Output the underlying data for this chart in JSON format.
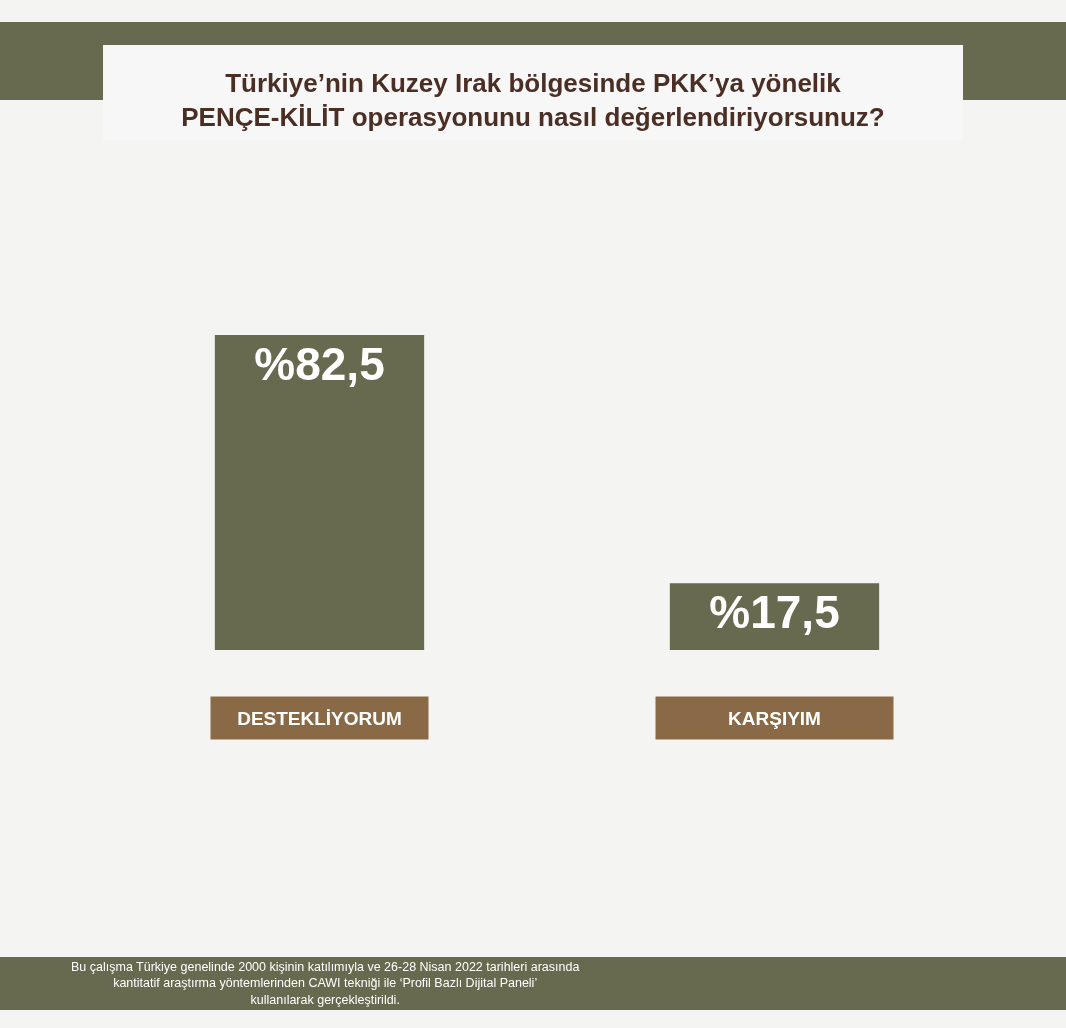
{
  "chart_data": {
    "type": "bar",
    "title": "Türkiye’nin Kuzey Irak bölgesinde PKK’ya yönelik\nPENÇE-KİLİT operasyonunu nasıl değerlendiriyorsunuz?",
    "categories": [
      "DESTEKLİYORUM",
      "KARŞIYIM"
    ],
    "values": [
      82.5,
      17.5
    ],
    "value_labels": [
      "%82,5",
      "%17,5"
    ],
    "color": "#676a4e",
    "annotations": [
      "Bu çalışma Türkiye genelinde 2000 kişinin katılımıyla ve 26-28 Nisan 2022 tarihleri arasında\nkantitatif araştırma yöntemlerinden CAWI tekniği ile ‘Profil Bazlı Dijital Paneli’\nkullanılarak gerçekleştirildi."
    ]
  }
}
